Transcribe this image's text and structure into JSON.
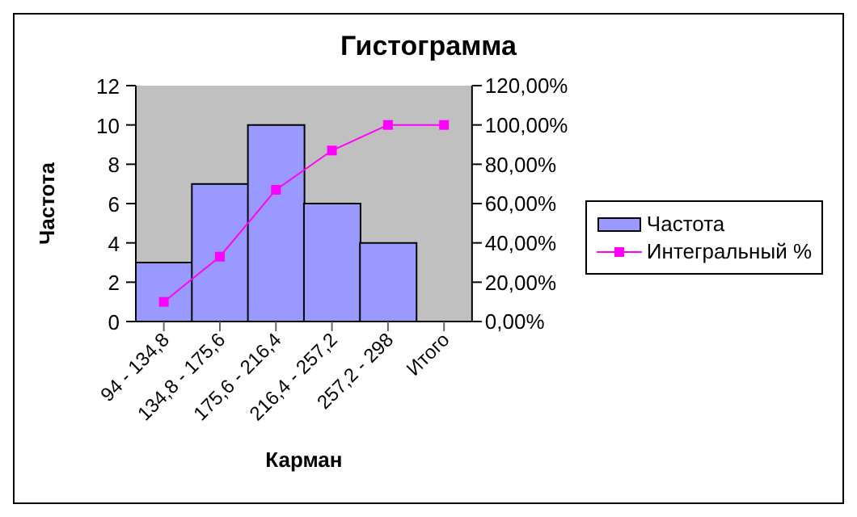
{
  "chart_data": {
    "type": "bar",
    "title": "Гистограмма",
    "xlabel": "Карман",
    "ylabel": "Частота",
    "categories": [
      "94 - 134,8",
      "134,8 - 175,6",
      "175,6 - 216,4",
      "216,4 - 257,2",
      "257,2 - 298",
      "Итого"
    ],
    "series": [
      {
        "name": "Частота",
        "color": "#9999ff",
        "values": [
          3,
          7,
          10,
          6,
          4,
          0
        ]
      },
      {
        "name": "Интегральный %",
        "type": "line",
        "axis": "y2",
        "color": "#ff00ff",
        "marker": "square",
        "values": [
          10,
          33,
          67,
          87,
          100,
          100
        ]
      }
    ],
    "ylim": [
      0,
      12
    ],
    "yticks": [
      0,
      2,
      4,
      6,
      8,
      10,
      12
    ],
    "y2lim": [
      0,
      120
    ],
    "y2ticks": [
      {
        "value": 0,
        "label": "0,00%"
      },
      {
        "value": 20,
        "label": "20,00%"
      },
      {
        "value": 40,
        "label": "40,00%"
      },
      {
        "value": 60,
        "label": "60,00%"
      },
      {
        "value": 80,
        "label": "80,00%"
      },
      {
        "value": 100,
        "label": "100,00%"
      },
      {
        "value": 120,
        "label": "120,00%"
      }
    ],
    "legend": "right"
  }
}
